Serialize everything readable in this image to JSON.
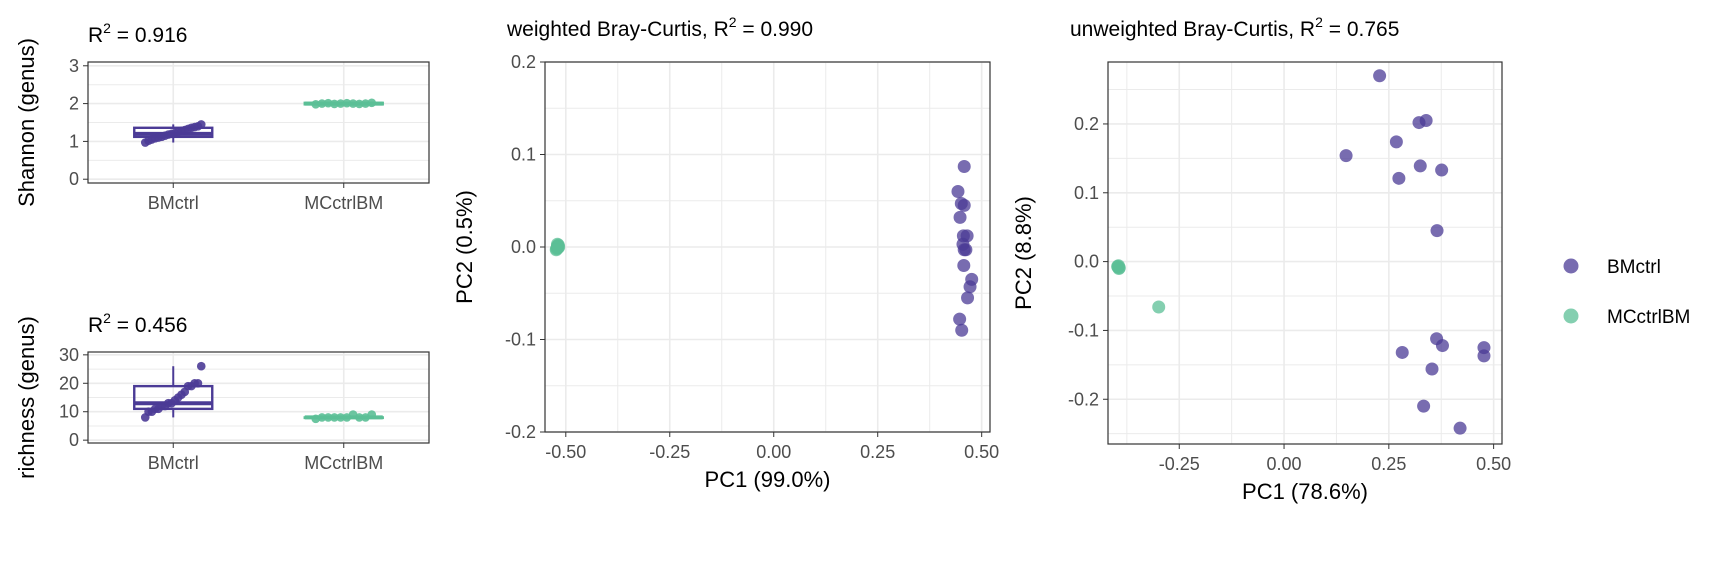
{
  "colors": {
    "BMctrl": "#4b3b96",
    "MCctrlBM": "#5bbf96",
    "grid": "#ebebeb",
    "panel_border": "#333333"
  },
  "legend": {
    "position": "right",
    "entries": [
      {
        "label": "BMctrl",
        "color": "#4b3b96"
      },
      {
        "label": "MCctrlBM",
        "color": "#5bbf96"
      }
    ]
  },
  "chart_data": [
    {
      "type": "box",
      "title": "R² = 0.916",
      "title_text": "R",
      "title_sup": "2",
      "title_tail": " = 0.916",
      "xlabel": "",
      "ylabel": "Shannon (genus)",
      "categories": [
        "BMctrl",
        "MCctrlBM"
      ],
      "ylim": [
        -0.1,
        3.1
      ],
      "yticks": [
        0,
        1,
        2,
        3
      ],
      "boxes": [
        {
          "group": "BMctrl",
          "q1": 1.12,
          "median": 1.2,
          "q3": 1.36,
          "whisker_low": 0.97,
          "whisker_high": 1.45
        },
        {
          "group": "MCctrlBM",
          "q1": 1.98,
          "median": 2.0,
          "q3": 2.02,
          "whisker_low": 1.98,
          "whisker_high": 2.02
        }
      ],
      "points": [
        {
          "group": "BMctrl",
          "values": [
            0.97,
            1.02,
            1.05,
            1.08,
            1.1,
            1.12,
            1.15,
            1.18,
            1.2,
            1.22,
            1.25,
            1.28,
            1.3,
            1.33,
            1.36,
            1.38,
            1.4,
            1.45
          ]
        },
        {
          "group": "MCctrlBM",
          "values": [
            1.98,
            1.99,
            2.0,
            2.0,
            2.0,
            2.01,
            2.01,
            2.02,
            2.0,
            1.99
          ]
        }
      ]
    },
    {
      "type": "box",
      "title": "R² = 0.456",
      "title_text": "R",
      "title_sup": "2",
      "title_tail": " = 0.456",
      "xlabel": "",
      "ylabel": "richness (genus)",
      "categories": [
        "BMctrl",
        "MCctrlBM"
      ],
      "ylim": [
        -1,
        31
      ],
      "yticks": [
        0,
        10,
        20,
        30
      ],
      "boxes": [
        {
          "group": "BMctrl",
          "q1": 11,
          "median": 13,
          "q3": 19,
          "whisker_low": 8,
          "whisker_high": 26
        },
        {
          "group": "MCctrlBM",
          "q1": 8,
          "median": 8,
          "q3": 8,
          "whisker_low": 7.5,
          "whisker_high": 8.5
        }
      ],
      "points": [
        {
          "group": "BMctrl",
          "values": [
            8,
            10,
            10,
            11,
            11,
            12,
            12,
            13,
            13,
            14,
            15,
            16,
            17,
            19,
            19,
            20,
            20,
            26
          ]
        },
        {
          "group": "MCctrlBM",
          "values": [
            7.5,
            8,
            8,
            8,
            8,
            8,
            8,
            9,
            9,
            8
          ]
        }
      ]
    },
    {
      "type": "scatter",
      "title": "weighted Bray-Curtis, R² = 0.990",
      "title_text": "weighted Bray-Curtis, R",
      "title_sup": "2",
      "title_tail": " = 0.990",
      "xlabel": "PC1 (99.0%)",
      "ylabel": "PC2 (0.5%)",
      "xlim": [
        -0.55,
        0.52
      ],
      "ylim": [
        -0.2,
        0.2
      ],
      "xticks": [
        -0.5,
        -0.25,
        0,
        0.25,
        0.5
      ],
      "xtick_labels": [
        "-0.50",
        "-0.25",
        "0.00",
        "0.25",
        "0.50"
      ],
      "yticks": [
        -0.2,
        -0.1,
        0,
        0.1,
        0.2
      ],
      "ytick_labels": [
        "-0.2",
        "-0.1",
        "0.0",
        "0.1",
        "0.2"
      ],
      "grid": true,
      "series": [
        {
          "name": "BMctrl",
          "x": [
            0.458,
            0.443,
            0.451,
            0.458,
            0.448,
            0.456,
            0.465,
            0.455,
            0.458,
            0.462,
            0.457,
            0.476,
            0.472,
            0.466,
            0.447,
            0.452
          ],
          "y": [
            0.087,
            0.06,
            0.047,
            0.045,
            0.032,
            0.012,
            0.012,
            0.003,
            -0.003,
            -0.003,
            -0.02,
            -0.035,
            -0.043,
            -0.055,
            -0.078,
            -0.09
          ]
        },
        {
          "name": "MCctrlBM",
          "x": [
            -0.52,
            -0.518,
            -0.522,
            -0.519,
            -0.521,
            -0.52,
            -0.517,
            -0.523,
            -0.52,
            -0.519
          ],
          "y": [
            0.0,
            0.002,
            -0.002,
            0.001,
            -0.001,
            0.003,
            0.0,
            -0.003,
            0.001,
            -0.001
          ]
        }
      ]
    },
    {
      "type": "scatter",
      "title": "unweighted Bray-Curtis, R² = 0.765",
      "title_text": "unweighted Bray-Curtis, R",
      "title_sup": "2",
      "title_tail": " = 0.765",
      "xlabel": "PC1 (78.6%)",
      "ylabel": "PC2 (8.8%)",
      "xlim": [
        -0.42,
        0.52
      ],
      "ylim": [
        -0.265,
        0.29
      ],
      "xticks": [
        -0.25,
        0,
        0.25,
        0.5
      ],
      "xtick_labels": [
        "-0.25",
        "0.00",
        "0.25",
        "0.50"
      ],
      "yticks": [
        -0.2,
        -0.1,
        0,
        0.1,
        0.2
      ],
      "ytick_labels": [
        "-0.2",
        "-0.1",
        "0.0",
        "0.1",
        "0.2"
      ],
      "grid": true,
      "series": [
        {
          "name": "BMctrl",
          "x": [
            0.228,
            0.339,
            0.322,
            0.268,
            0.148,
            0.325,
            0.376,
            0.274,
            0.365,
            0.364,
            0.477,
            0.282,
            0.378,
            0.477,
            0.353,
            0.333,
            0.42
          ],
          "y": [
            0.27,
            0.205,
            0.202,
            0.174,
            0.154,
            0.139,
            0.133,
            0.121,
            0.045,
            -0.112,
            -0.125,
            -0.132,
            -0.122,
            -0.137,
            -0.156,
            -0.21,
            -0.242
          ]
        },
        {
          "name": "MCctrlBM",
          "x": [
            -0.396,
            -0.394,
            -0.395,
            -0.393,
            -0.397,
            -0.299
          ],
          "y": [
            -0.008,
            -0.01,
            -0.006,
            -0.009,
            -0.007,
            -0.066
          ]
        }
      ]
    }
  ]
}
